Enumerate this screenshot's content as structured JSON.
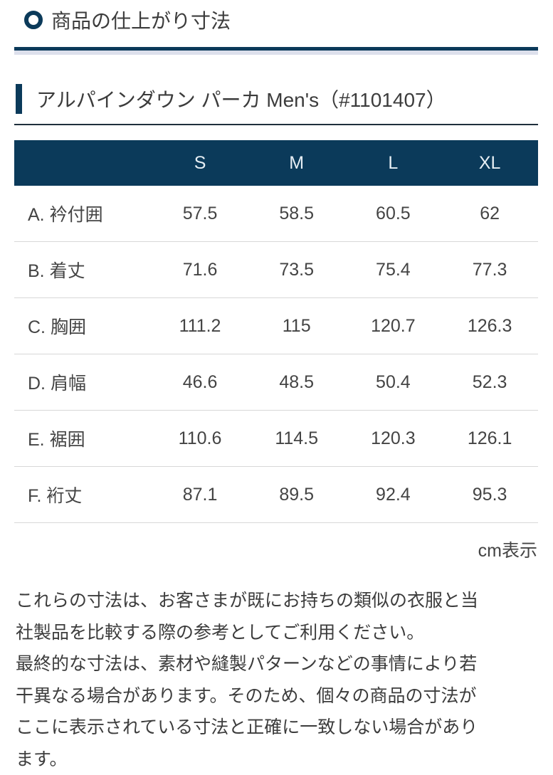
{
  "section_title": "商品の仕上がり寸法",
  "product_title": "アルパインダウン パーカ Men's（#1101407）",
  "table": {
    "headers": [
      "",
      "S",
      "M",
      "L",
      "XL"
    ],
    "rows": [
      {
        "label": "A. 衿付囲",
        "values": [
          "57.5",
          "58.5",
          "60.5",
          "62"
        ]
      },
      {
        "label": "B. 着丈",
        "values": [
          "71.6",
          "73.5",
          "75.4",
          "77.3"
        ]
      },
      {
        "label": "C. 胸囲",
        "values": [
          "111.2",
          "115",
          "120.7",
          "126.3"
        ]
      },
      {
        "label": "D. 肩幅",
        "values": [
          "46.6",
          "48.5",
          "50.4",
          "52.3"
        ]
      },
      {
        "label": "E. 裾囲",
        "values": [
          "110.6",
          "114.5",
          "120.3",
          "126.1"
        ]
      },
      {
        "label": "F. 裄丈",
        "values": [
          "87.1",
          "89.5",
          "92.4",
          "95.3"
        ]
      }
    ]
  },
  "unit_note": "cm表示",
  "note_lines": [
    "これらの寸法は、お客さまが既にお持ちの類似の衣服と当",
    "社製品を比較する際の参考としてご利用ください。",
    "最終的な寸法は、素材や縫製パターンなどの事情により若",
    "干異なる場合があります。そのため、個々の商品の寸法が",
    "ここに表示されている寸法と正確に一致しない場合があり",
    "ます。"
  ],
  "colors": {
    "accent": "#0b3a5a",
    "rule_light": "#dde0ec"
  }
}
